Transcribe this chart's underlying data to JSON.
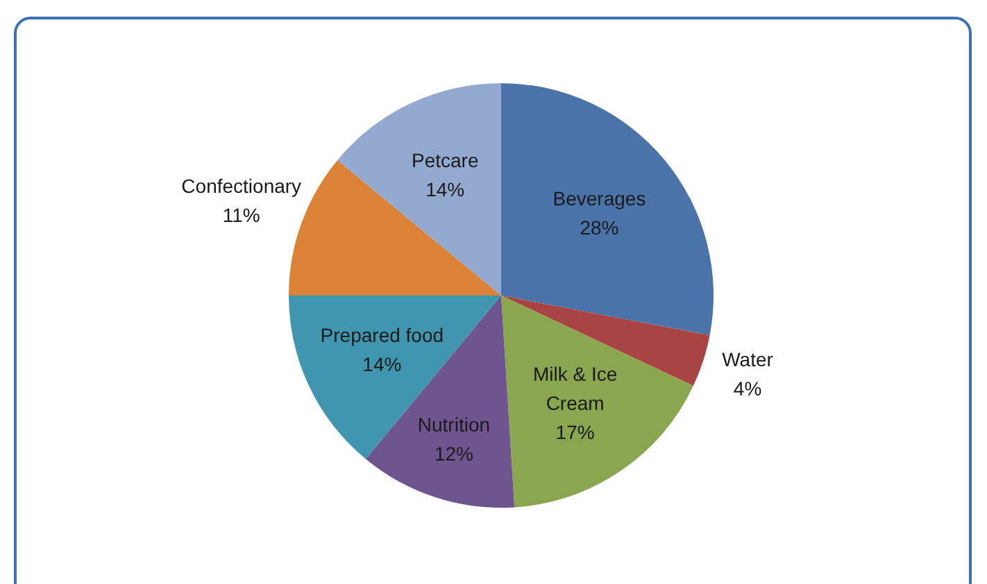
{
  "chart_data": {
    "type": "pie",
    "categories": [
      "Beverages",
      "Water",
      "Milk & Ice Cream",
      "Nutrition",
      "Prepared food",
      "Confectionary",
      "Petcare"
    ],
    "values": [
      28,
      4,
      17,
      12,
      14,
      11,
      14
    ],
    "value_labels": [
      "28%",
      "4%",
      "17%",
      "12%",
      "14%",
      "11%",
      "14%"
    ],
    "colors": [
      "#4a74a9",
      "#a84542",
      "#8aa64e",
      "#6e558f",
      "#3f96ae",
      "#dc8237",
      "#93a9cf"
    ],
    "legend": false
  }
}
